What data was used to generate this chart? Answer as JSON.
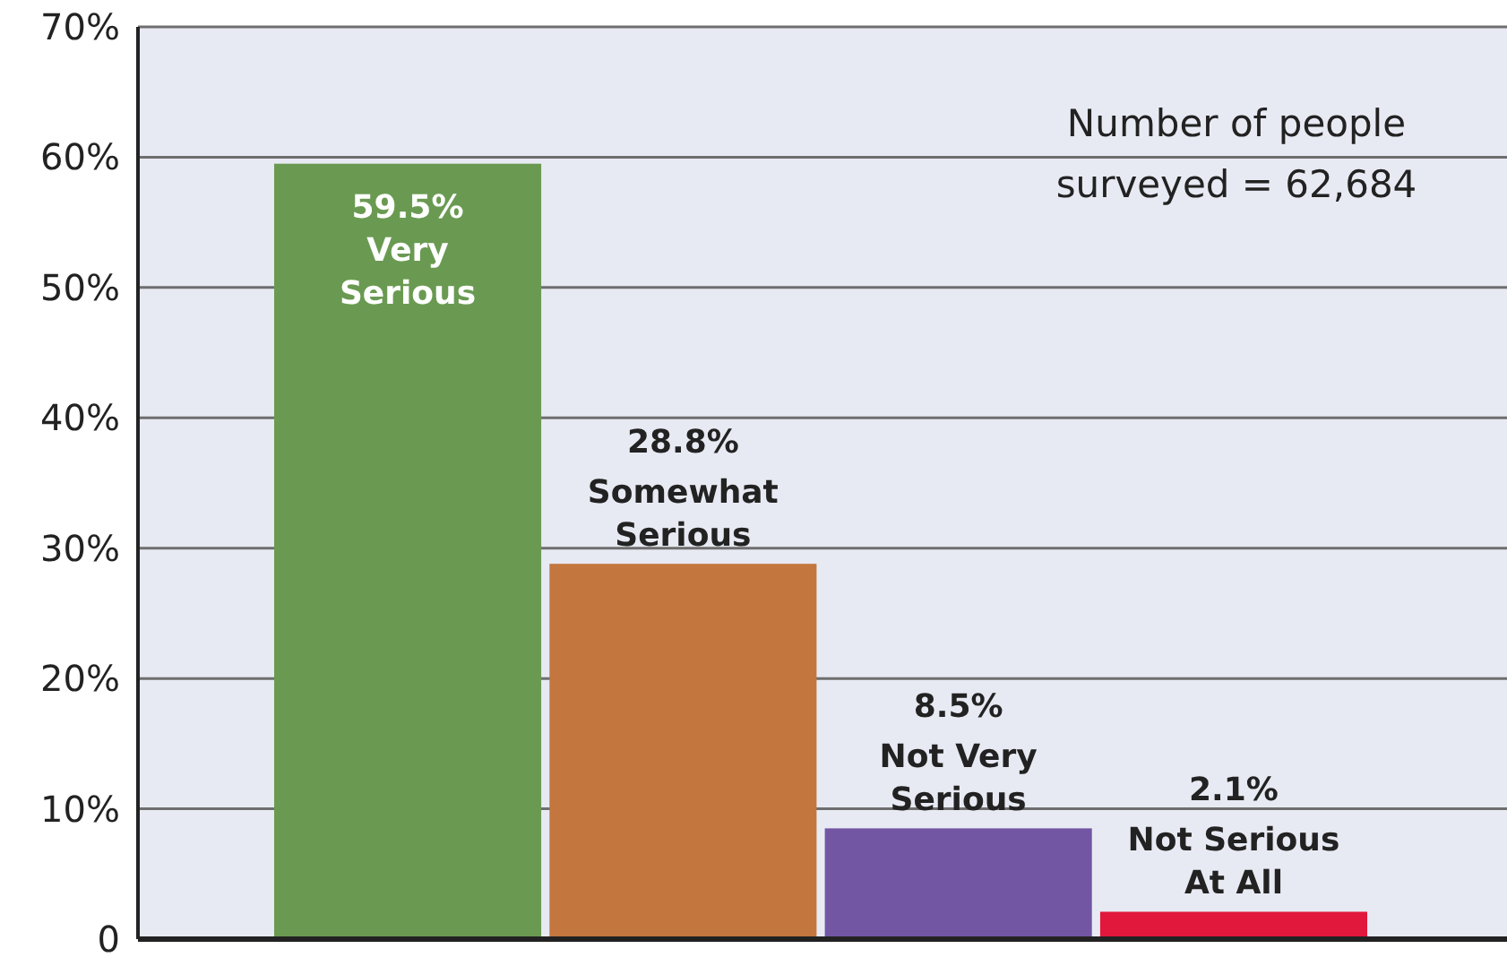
{
  "chart_data": {
    "type": "bar",
    "categories": [
      "Very Serious",
      "Somewhat Serious",
      "Not Very Serious",
      "Not Serious At All"
    ],
    "values": [
      59.5,
      28.8,
      8.5,
      2.1
    ],
    "colors": [
      "#6a9a52",
      "#c3773f",
      "#7256a4",
      "#e1173c"
    ],
    "value_labels": [
      "59.5%",
      "28.8%",
      "8.5%",
      "2.1%"
    ],
    "ylim": [
      0,
      70
    ],
    "yticks": [
      {
        "value": 0,
        "label": "0"
      },
      {
        "value": 10,
        "label": "10%"
      },
      {
        "value": 20,
        "label": "20%"
      },
      {
        "value": 30,
        "label": "30%"
      },
      {
        "value": 40,
        "label": "40%"
      },
      {
        "value": 50,
        "label": "50%"
      },
      {
        "value": 60,
        "label": "60%"
      },
      {
        "value": 70,
        "label": "70%"
      }
    ],
    "grid": "y",
    "annotations": [
      "Number of people surveyed = 62,684"
    ]
  }
}
